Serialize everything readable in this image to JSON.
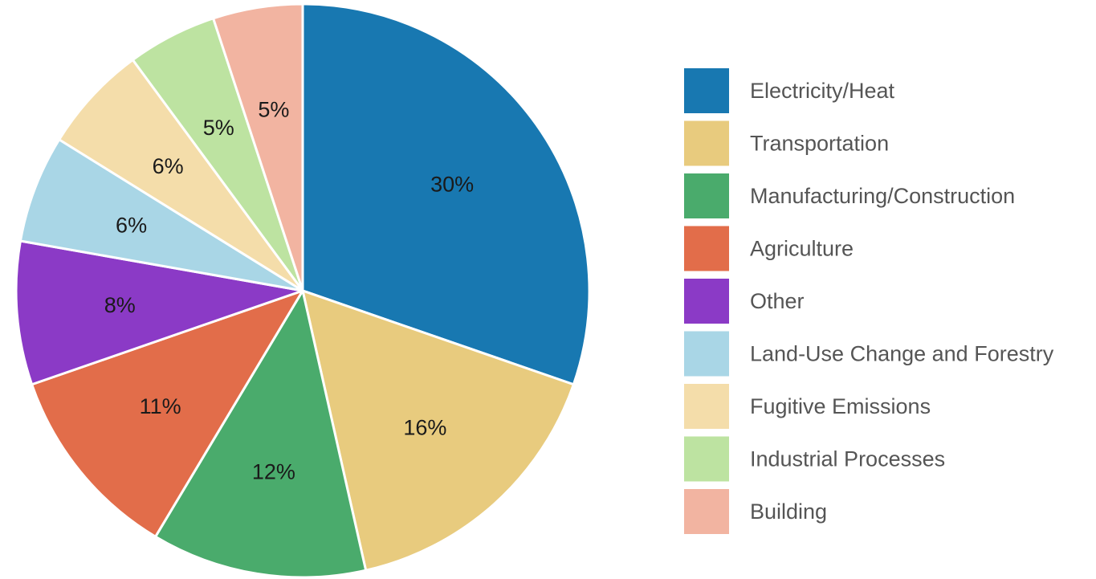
{
  "chart_data": {
    "type": "pie",
    "title": "",
    "legend_position": "right",
    "start_angle_deg": 0,
    "direction": "clockwise",
    "slices": [
      {
        "name": "Electricity/Heat",
        "value": 30,
        "label": "30%",
        "color": "#1878b1"
      },
      {
        "name": "Transportation",
        "value": 16,
        "label": "16%",
        "color": "#e8cb7e"
      },
      {
        "name": "Manufacturing/Construction",
        "value": 12,
        "label": "12%",
        "color": "#4aab6c"
      },
      {
        "name": "Agriculture",
        "value": 11,
        "label": "11%",
        "color": "#e26d4a"
      },
      {
        "name": "Other",
        "value": 8,
        "label": "8%",
        "color": "#8b3ac6"
      },
      {
        "name": "Land-Use Change and Forestry",
        "value": 6,
        "label": "6%",
        "color": "#a9d6e6"
      },
      {
        "name": "Fugitive Emissions",
        "value": 6,
        "label": "6%",
        "color": "#f4ddaa"
      },
      {
        "name": "Industrial Processes",
        "value": 5,
        "label": "5%",
        "color": "#bde3a1"
      },
      {
        "name": "Building",
        "value": 5,
        "label": "5%",
        "color": "#f2b4a1"
      }
    ]
  }
}
